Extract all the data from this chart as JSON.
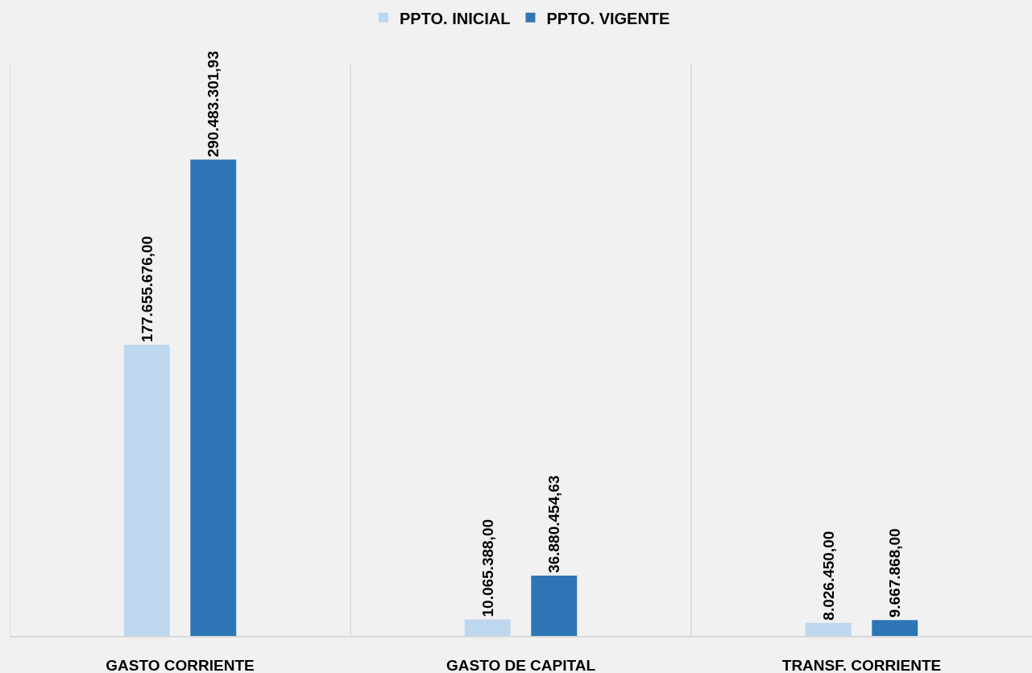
{
  "chart_data": {
    "type": "bar",
    "categories": [
      "GASTO CORRIENTE",
      "GASTO DE CAPITAL",
      "TRANSF. CORRIENTE"
    ],
    "series": [
      {
        "name": "PPTO. INICIAL",
        "color": "#bdd7ee",
        "values": [
          177655676.0,
          10065388.0,
          8026450.0
        ],
        "value_labels": [
          "177.655.676,00",
          "10.065.388,00",
          "8.026.450,00"
        ]
      },
      {
        "name": "PPTO. VIGENTE",
        "color": "#2e75b6",
        "values": [
          290483301.93,
          36880454.63,
          9667868.0
        ],
        "value_labels": [
          "290.483.301,93",
          "36.880.454,63",
          "9.667.868,00"
        ]
      }
    ],
    "legend": "top",
    "grid": "x",
    "tick_labels": "x"
  }
}
